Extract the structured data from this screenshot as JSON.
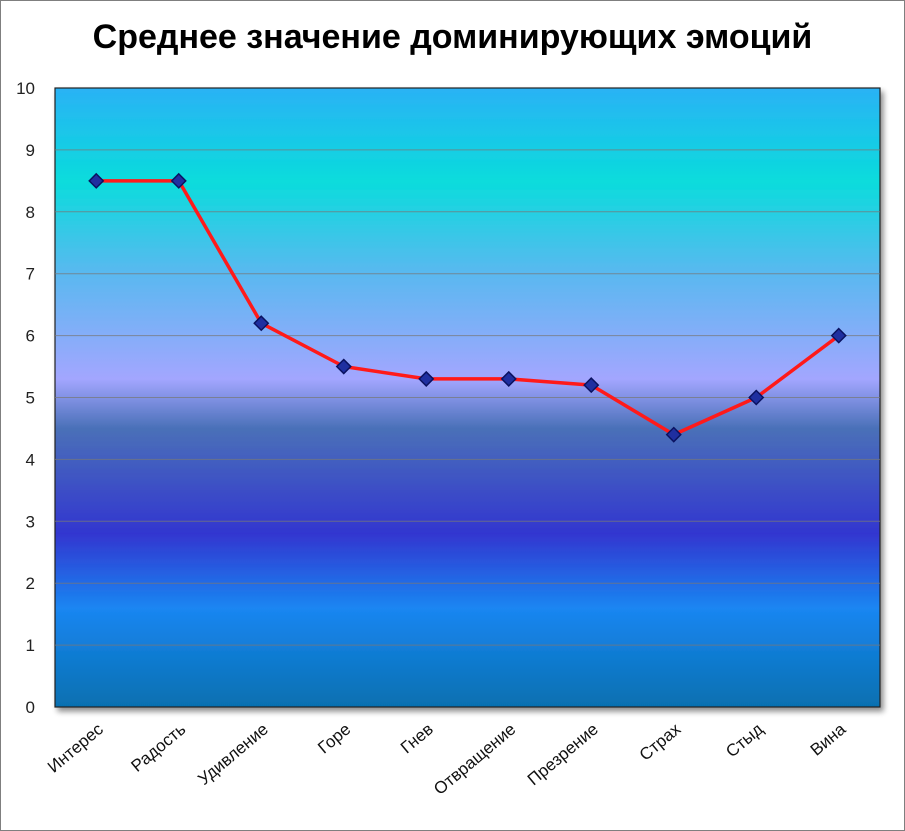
{
  "chart_data": {
    "type": "line",
    "title": "Среднее значение доминирующих эмоций",
    "xlabel": "",
    "ylabel": "",
    "categories": [
      "Интерес",
      "Радость",
      "Удивление",
      "Горе",
      "Гнев",
      "Отвращение",
      "Презрение",
      "Страх",
      "Стыд",
      "Вина"
    ],
    "series": [
      {
        "values": [
          8.5,
          8.5,
          6.2,
          5.5,
          5.3,
          5.3,
          5.2,
          4.4,
          5.0,
          6.0
        ]
      }
    ],
    "ylim": [
      0,
      10
    ],
    "yticks": [
      "0",
      "1",
      "2",
      "3",
      "4",
      "5",
      "6",
      "7",
      "8",
      "9",
      "10"
    ],
    "grid": true,
    "legend": "none",
    "colors": {
      "line": "#ff1a1a",
      "marker": "#1f2fa0",
      "marker_edge": "#0a1260",
      "plot_top": "#2ab2f5",
      "plot_band_cyan": "#0adcdc",
      "plot_band_lilac": "#a3a6ff",
      "plot_band_indigo": "#3236d0",
      "plot_band_blue": "#1a86f2",
      "plot_bottom": "#0670b0"
    }
  }
}
